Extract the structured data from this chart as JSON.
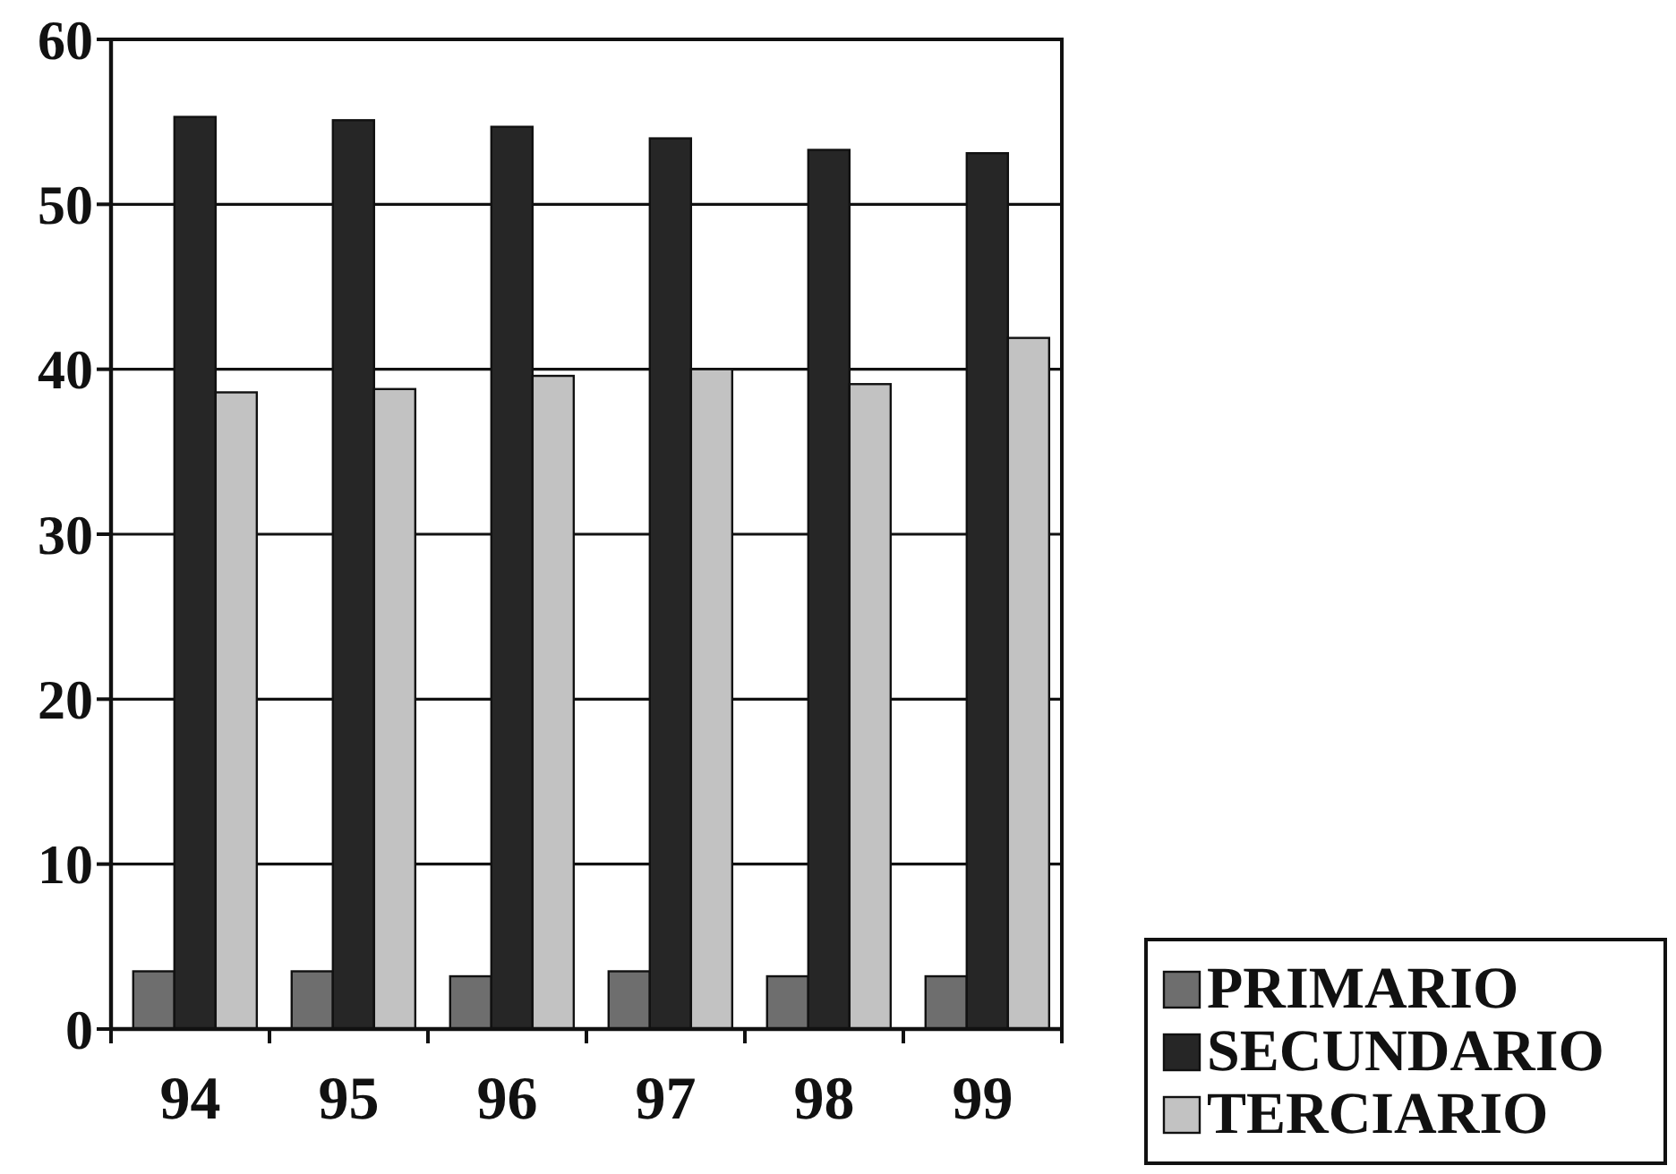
{
  "chart_data": {
    "type": "bar",
    "categories": [
      "94",
      "95",
      "96",
      "97",
      "98",
      "99"
    ],
    "series": [
      {
        "name": "PRIMARIO",
        "color": "#6e6e6e",
        "values": [
          3.5,
          3.5,
          3.2,
          3.5,
          3.2,
          3.2
        ]
      },
      {
        "name": "SECUNDARIO",
        "color": "#262626",
        "values": [
          55.3,
          55.1,
          54.7,
          54.0,
          53.3,
          53.1
        ]
      },
      {
        "name": "TERCIARIO",
        "color": "#c2c2c2",
        "values": [
          38.6,
          38.8,
          39.6,
          40.0,
          39.1,
          41.9
        ]
      }
    ],
    "ylim": [
      0,
      60
    ],
    "yticks": [
      0,
      10,
      20,
      30,
      40,
      50,
      60
    ],
    "grid": "y",
    "legend": "bottom right"
  }
}
